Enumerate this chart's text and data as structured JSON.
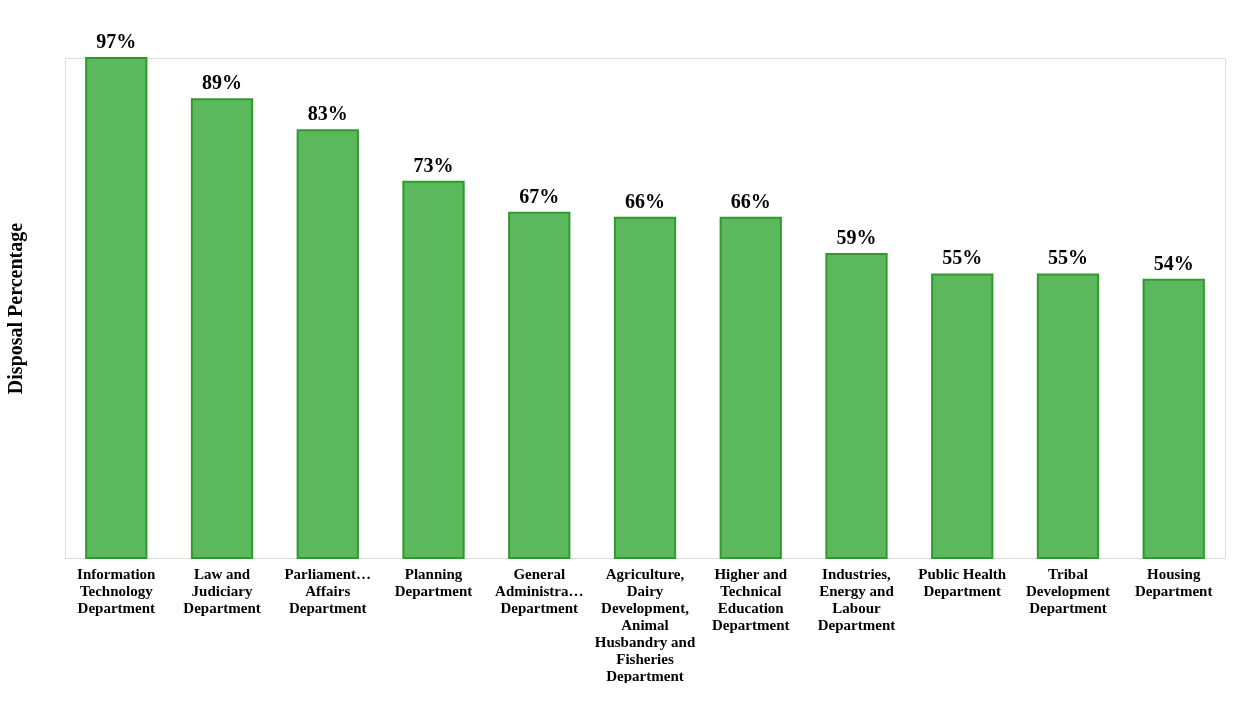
{
  "chart_data": {
    "type": "bar",
    "ylabel": "Disposal Percentage",
    "categories": [
      "Information Technology Department",
      "Law and Judiciary Department",
      "Parliament… Affairs Department",
      "Planning Department",
      "General Administra… Department",
      "Agriculture, Dairy Development, Animal Husbandry and Fisheries Department",
      "Higher and Technical Education Department",
      "Industries, Energy and Labour Department",
      "Public Health Department",
      "Tribal Development Department",
      "Housing Department"
    ],
    "values": [
      97,
      89,
      83,
      73,
      67,
      66,
      66,
      59,
      55,
      55,
      54
    ],
    "value_labels": [
      "97%",
      "89%",
      "83%",
      "73%",
      "67%",
      "66%",
      "66%",
      "59%",
      "55%",
      "55%",
      "54%"
    ],
    "color": "#5cb85c",
    "tick_labels": "x",
    "grid": false
  }
}
